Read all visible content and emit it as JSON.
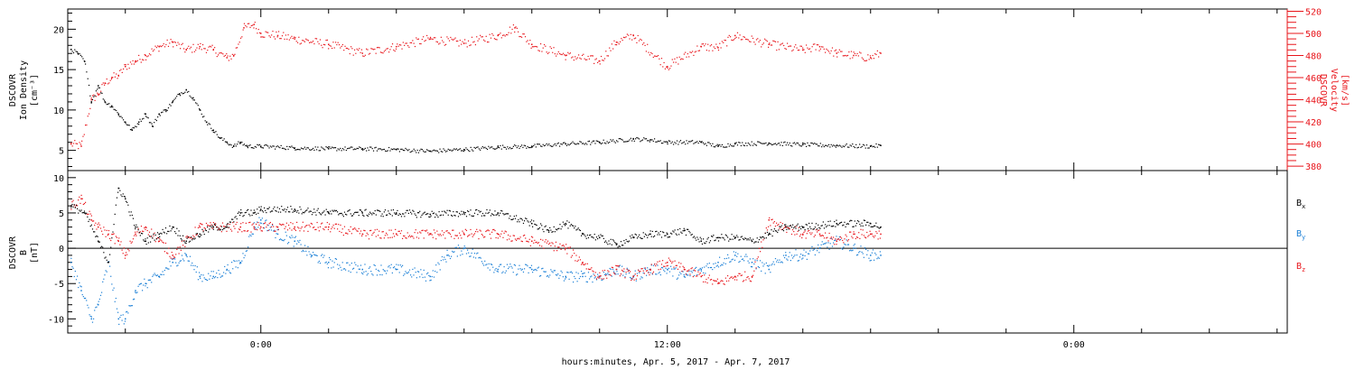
{
  "colors": {
    "black": "#000000",
    "red": "#e8141a",
    "blue": "#1a7fd6",
    "axis": "#000000"
  },
  "xaxis": {
    "label": "hours:minutes, Apr. 5, 2017 - Apr. 7, 2017",
    "range_hours": [
      -5.7,
      30.3
    ],
    "major_ticks": [
      0,
      12,
      24
    ],
    "major_labels": [
      "0:00",
      "12:00",
      "0:00"
    ],
    "minor_step_hours": 2
  },
  "chart_data": [
    {
      "type": "scatter",
      "panel": "top",
      "ylabel_left": [
        "DSCOVR",
        "Ion Density",
        "[cm⁻³]"
      ],
      "ylabel_right": [
        "DSCOVR",
        "Velocity",
        "[km/s]"
      ],
      "ylim_left": [
        2.5,
        22.5
      ],
      "yticks_left": [
        5,
        10,
        15,
        20
      ],
      "ylim_right": [
        376,
        522
      ],
      "yticks_right": [
        380,
        400,
        420,
        440,
        460,
        480,
        500,
        520
      ],
      "grid": false,
      "series": [
        {
          "axis": "left",
          "color": "black",
          "x_hours": [
            -5.6,
            -5.4,
            -5.2,
            -5.0,
            -4.8,
            -4.6,
            -4.4,
            -4.2,
            -4.0,
            -3.8,
            -3.6,
            -3.4,
            -3.2,
            -3.0,
            -2.8,
            -2.6,
            -2.4,
            -2.2,
            -2.0,
            -1.8,
            -1.6,
            -1.4,
            -1.2,
            -1.0,
            -0.8,
            -0.6,
            -0.4,
            0.0,
            1.0,
            2.0,
            3.0,
            4.0,
            5.0,
            6.0,
            7.0,
            8.0,
            9.0,
            10.0,
            11.0,
            11.5,
            12.0,
            13.0,
            13.5,
            14.0,
            15.0,
            16.0,
            17.0,
            18.0,
            18.3
          ],
          "values": [
            17.5,
            17,
            16,
            11,
            13,
            11,
            10.5,
            9.5,
            8.5,
            7.5,
            8.5,
            9.5,
            8,
            9.5,
            10,
            11,
            12,
            12.5,
            11.5,
            10,
            8.5,
            7.5,
            6.5,
            6,
            5.5,
            6,
            5.5,
            5.5,
            5.3,
            5.2,
            5.2,
            5.1,
            4.9,
            5.1,
            5.4,
            5.5,
            5.8,
            6.0,
            6.4,
            6.3,
            6.0,
            6.0,
            5.5,
            5.8,
            5.9,
            5.7,
            5.6,
            5.5,
            5.6
          ]
        },
        {
          "axis": "right",
          "color": "red",
          "x_hours": [
            -5.6,
            -5.3,
            -5.0,
            -4.8,
            -4.6,
            -4.4,
            -4.2,
            -4.0,
            -3.7,
            -3.4,
            -3.0,
            -2.6,
            -2.2,
            -1.8,
            -1.4,
            -1.0,
            -0.8,
            -0.5,
            -0.2,
            0.0,
            0.5,
            1.0,
            2.0,
            3.0,
            4.0,
            5.0,
            6.0,
            7.0,
            7.5,
            8.0,
            9.0,
            10.0,
            10.5,
            11.0,
            12.0,
            13.0,
            13.5,
            14.0,
            15.0,
            16.0,
            16.5,
            17.0,
            17.5,
            18.0,
            18.3
          ],
          "values": [
            400,
            398,
            440,
            445,
            455,
            460,
            462,
            470,
            475,
            480,
            488,
            492,
            485,
            488,
            485,
            478,
            480,
            505,
            508,
            500,
            498,
            495,
            490,
            482,
            488,
            495,
            491,
            498,
            505,
            490,
            480,
            475,
            492,
            498,
            470,
            488,
            487,
            498,
            490,
            485,
            488,
            482,
            480,
            478,
            482
          ]
        }
      ]
    },
    {
      "type": "scatter",
      "panel": "bottom",
      "ylabel_left": [
        "DSCOVR",
        "B",
        "[nT]"
      ],
      "ylim": [
        -12,
        11
      ],
      "yticks": [
        -10,
        -5,
        0,
        5,
        10
      ],
      "zero_line": true,
      "grid": false,
      "series": [
        {
          "name": "Bx",
          "legend_main": "B",
          "legend_sub": "x",
          "color": "black",
          "x_hours": [
            -5.6,
            -5.2,
            -4.8,
            -4.5,
            -4.2,
            -4.0,
            -3.7,
            -3.4,
            -3.0,
            -2.6,
            -2.2,
            -1.8,
            -1.4,
            -1.0,
            -0.6,
            -0.2,
            0.0,
            1.0,
            2.0,
            3.0,
            4.0,
            5.0,
            6.0,
            7.0,
            8.0,
            8.5,
            9.0,
            9.5,
            10.0,
            10.5,
            11.0,
            11.5,
            12.0,
            12.5,
            13.0,
            13.5,
            14.0,
            14.5,
            15.0,
            15.5,
            16.0,
            17.0,
            18.0,
            18.3
          ],
          "values": [
            6,
            5,
            1,
            -2,
            8.5,
            7,
            3,
            1,
            2,
            3,
            1,
            2,
            3,
            3,
            5,
            5,
            5.5,
            5.5,
            5.0,
            5.0,
            5.0,
            4.8,
            5.0,
            5.0,
            3.5,
            2.5,
            3.5,
            2.0,
            1.5,
            0.5,
            1.5,
            2.0,
            2.0,
            2.5,
            1.0,
            1.5,
            1.5,
            1.0,
            2.0,
            3.0,
            3.0,
            3.5,
            3.5,
            3.0
          ]
        },
        {
          "name": "By",
          "legend_main": "B",
          "legend_sub": "y",
          "color": "blue",
          "x_hours": [
            -5.6,
            -5.3,
            -5.0,
            -4.8,
            -4.5,
            -4.2,
            -4.0,
            -3.7,
            -3.4,
            -3.0,
            -2.6,
            -2.2,
            -1.8,
            -1.4,
            -1.0,
            -0.6,
            -0.2,
            0.0,
            0.5,
            1.0,
            1.5,
            2.0,
            3.0,
            4.0,
            5.0,
            5.5,
            6.0,
            7.0,
            8.0,
            9.0,
            9.5,
            10.0,
            10.5,
            11.0,
            11.5,
            12.0,
            12.5,
            13.0,
            13.5,
            14.0,
            14.5,
            15.0,
            15.5,
            16.0,
            16.5,
            17.0,
            17.5,
            18.0,
            18.3
          ],
          "values": [
            -2,
            -6,
            -10,
            -8,
            -2,
            -10,
            -10,
            -6,
            -5,
            -4,
            -2,
            -1,
            -4,
            -4,
            -3,
            -2,
            3,
            4,
            2,
            1,
            -1,
            -2,
            -3,
            -3,
            -4,
            -1,
            0,
            -3,
            -3,
            -4,
            -4,
            -4,
            -3,
            -4,
            -3,
            -3,
            -4,
            -3,
            -2,
            -1,
            -2,
            -3,
            -1,
            -1,
            0,
            1,
            0,
            -1,
            -1
          ]
        },
        {
          "name": "Bz",
          "legend_main": "B",
          "legend_sub": "z",
          "color": "red",
          "x_hours": [
            -5.6,
            -5.3,
            -5.0,
            -4.8,
            -4.5,
            -4.2,
            -4.0,
            -3.7,
            -3.4,
            -3.0,
            -2.6,
            -2.2,
            -1.8,
            -1.4,
            -1.0,
            -0.6,
            -0.2,
            0.0,
            0.5,
            1.0,
            2.0,
            3.0,
            4.0,
            5.0,
            6.0,
            7.0,
            8.0,
            9.0,
            9.5,
            10.0,
            10.5,
            11.0,
            11.5,
            12.0,
            12.5,
            13.0,
            13.5,
            14.0,
            14.5,
            15.0,
            15.5,
            16.0,
            16.5,
            17.0,
            17.5,
            18.0,
            18.3
          ],
          "values": [
            6,
            7,
            4,
            3,
            2,
            1,
            -1,
            2,
            3,
            1,
            -1,
            1,
            3,
            3,
            3,
            3,
            3,
            3,
            3,
            3,
            3,
            2,
            2,
            2,
            2,
            2,
            1,
            0,
            -2,
            -4,
            -3,
            -4,
            -3,
            -2,
            -3,
            -4,
            -5,
            -4,
            -4,
            4,
            3,
            2,
            2,
            1,
            2,
            2,
            2
          ]
        }
      ]
    }
  ]
}
